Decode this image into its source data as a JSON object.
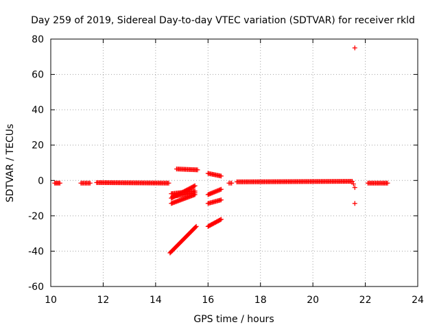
{
  "chart_data": {
    "type": "scatter",
    "title": "Day 259 of 2019, Sidereal Day-to-day VTEC variation (SDTVAR) for receiver rkld",
    "xlabel": "GPS time / hours",
    "ylabel": "SDTVAR / TECUs",
    "xlim": [
      10,
      24
    ],
    "ylim": [
      -60,
      80
    ],
    "xticks": [
      10,
      12,
      14,
      16,
      18,
      20,
      22,
      24
    ],
    "yticks": [
      -60,
      -40,
      -20,
      0,
      20,
      40,
      60,
      80
    ],
    "grid": true,
    "marker": "+",
    "color": "#ff0000",
    "segments": [
      {
        "x": [
          10.15,
          10.35
        ],
        "y": [
          -1.5,
          -1.5
        ]
      },
      {
        "x": [
          11.15,
          11.5
        ],
        "y": [
          -1.5,
          -1.5
        ]
      },
      {
        "x": [
          11.75,
          14.5
        ],
        "y": [
          -1.2,
          -1.5
        ]
      },
      {
        "x": [
          14.55,
          15.55
        ],
        "y": [
          -41,
          -26
        ]
      },
      {
        "x": [
          14.6,
          15.5
        ],
        "y": [
          -13,
          -8
        ]
      },
      {
        "x": [
          14.6,
          15.5
        ],
        "y": [
          -10,
          -3
        ]
      },
      {
        "x": [
          14.65,
          15.5
        ],
        "y": [
          -9,
          -7
        ]
      },
      {
        "x": [
          14.6,
          15.5
        ],
        "y": [
          -7.5,
          -6
        ]
      },
      {
        "x": [
          14.8,
          15.6
        ],
        "y": [
          6.5,
          6
        ]
      },
      {
        "x": [
          16.0,
          16.5
        ],
        "y": [
          -26,
          -22
        ]
      },
      {
        "x": [
          16.0,
          16.5
        ],
        "y": [
          -13,
          -11
        ]
      },
      {
        "x": [
          16.0,
          16.5
        ],
        "y": [
          -8,
          -5
        ]
      },
      {
        "x": [
          16.0,
          16.5
        ],
        "y": [
          4,
          2.5
        ]
      },
      {
        "x": [
          16.8,
          16.9
        ],
        "y": [
          -1.5,
          -1.5
        ]
      },
      {
        "x": [
          17.1,
          21.5
        ],
        "y": [
          -0.8,
          -0.5
        ]
      },
      {
        "x": [
          22.1,
          22.85
        ],
        "y": [
          -1.5,
          -1.5
        ]
      }
    ],
    "points": [
      {
        "x": 21.6,
        "y": 75
      },
      {
        "x": 21.6,
        "y": -13
      },
      {
        "x": 21.6,
        "y": -4
      },
      {
        "x": 21.55,
        "y": -2
      }
    ]
  }
}
